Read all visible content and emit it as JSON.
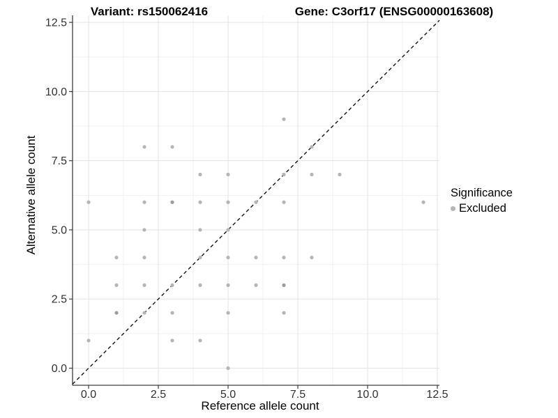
{
  "titles": {
    "left": "Variant: rs150062416",
    "right": "Gene: C3orf17 (ENSG00000163608)"
  },
  "legend": {
    "title": "Significance",
    "items": [
      {
        "label": "Excluded",
        "color": "#b5b5b5"
      }
    ]
  },
  "colors": {
    "point": "#b5b5b5",
    "point_overplotted": "#9c9c9c",
    "grid_major": "#e3e3e3",
    "grid_minor": "#f0f0f0",
    "axis_line": "#3d3d3d",
    "tick_text": "#303030",
    "identity_line": "#111111",
    "background": "#ffffff"
  },
  "chart_data": {
    "type": "scatter",
    "title_left": "Variant: rs150062416",
    "title_right": "Gene: C3orf17 (ENSG00000163608)",
    "xlabel": "Reference allele count",
    "ylabel": "Alternative allele count",
    "xlim": [
      -0.6,
      12.6
    ],
    "ylim": [
      -0.6,
      12.8
    ],
    "x_ticks": [
      0.0,
      2.5,
      5.0,
      7.5,
      10.0,
      12.5
    ],
    "y_ticks": [
      0.0,
      2.5,
      5.0,
      7.5,
      10.0,
      12.5
    ],
    "grid": "major+minor",
    "legend_position": "right",
    "reference_line": {
      "type": "identity y=x",
      "style": "dashed",
      "color": "#111111"
    },
    "series": [
      {
        "name": "Excluded",
        "color": "#b5b5b5",
        "points": [
          [
            0,
            1
          ],
          [
            0,
            6
          ],
          [
            1,
            2
          ],
          [
            1,
            3
          ],
          [
            1,
            4
          ],
          [
            2,
            2
          ],
          [
            2,
            3
          ],
          [
            2,
            4
          ],
          [
            2,
            5
          ],
          [
            2,
            6
          ],
          [
            2,
            8
          ],
          [
            3,
            1
          ],
          [
            3,
            2
          ],
          [
            3,
            3
          ],
          [
            3,
            6
          ],
          [
            3,
            8
          ],
          [
            4,
            1
          ],
          [
            4,
            3
          ],
          [
            4,
            4
          ],
          [
            4,
            5
          ],
          [
            4,
            6
          ],
          [
            4,
            7
          ],
          [
            5,
            0
          ],
          [
            5,
            2
          ],
          [
            5,
            3
          ],
          [
            5,
            4
          ],
          [
            5,
            5
          ],
          [
            5,
            6
          ],
          [
            5,
            7
          ],
          [
            6,
            3
          ],
          [
            6,
            4
          ],
          [
            6,
            6
          ],
          [
            7,
            2
          ],
          [
            7,
            3
          ],
          [
            7,
            4
          ],
          [
            7,
            6
          ],
          [
            7,
            7
          ],
          [
            7,
            9
          ],
          [
            8,
            4
          ],
          [
            8,
            7
          ],
          [
            8,
            8
          ],
          [
            9,
            7
          ],
          [
            12,
            6
          ]
        ]
      }
    ],
    "overplotted_points": [
      [
        1,
        2
      ],
      [
        3,
        6
      ],
      [
        7,
        3
      ]
    ]
  }
}
